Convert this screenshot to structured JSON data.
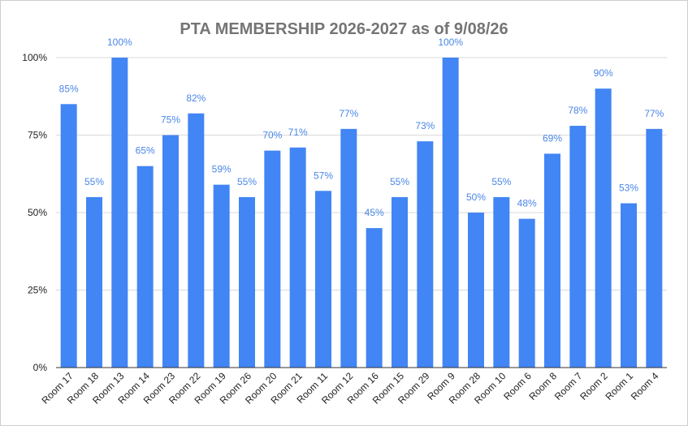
{
  "chart_data": {
    "type": "bar",
    "title": "PTA MEMBERSHIP 2026-2027 as of 9/08/26",
    "xlabel": "",
    "ylabel": "",
    "ylim": [
      0,
      100
    ],
    "y_ticks": [
      {
        "value": 0,
        "label": "0%"
      },
      {
        "value": 25,
        "label": "25%"
      },
      {
        "value": 50,
        "label": "50%"
      },
      {
        "value": 75,
        "label": "75%"
      },
      {
        "value": 100,
        "label": "100%"
      }
    ],
    "grid": true,
    "legend": "none",
    "bar_color": "#4285f4",
    "label_color": "#4a86e8",
    "categories": [
      "Room 17",
      "Room 18",
      "Room 13",
      "Room 14",
      "Room 23",
      "Room 22",
      "Room 19",
      "Room 26",
      "Room 20",
      "Room 21",
      "Room 11",
      "Room 12",
      "Room 16",
      "Room 15",
      "Room 29",
      "Room 9",
      "Room 28",
      "Room 10",
      "Room 6",
      "Room 8",
      "Room 7",
      "Room 2",
      "Room 1",
      "Room 4"
    ],
    "values": [
      85,
      55,
      100,
      65,
      75,
      82,
      59,
      55,
      70,
      71,
      57,
      77,
      45,
      55,
      73,
      100,
      50,
      55,
      48,
      69,
      78,
      90,
      53,
      77
    ],
    "data_labels": [
      "85%",
      "55%",
      "100%",
      "65%",
      "75%",
      "82%",
      "59%",
      "55%",
      "70%",
      "71%",
      "57%",
      "77%",
      "45%",
      "55%",
      "73%",
      "100%",
      "50%",
      "55%",
      "48%",
      "69%",
      "78%",
      "90%",
      "53%",
      "77%"
    ]
  }
}
